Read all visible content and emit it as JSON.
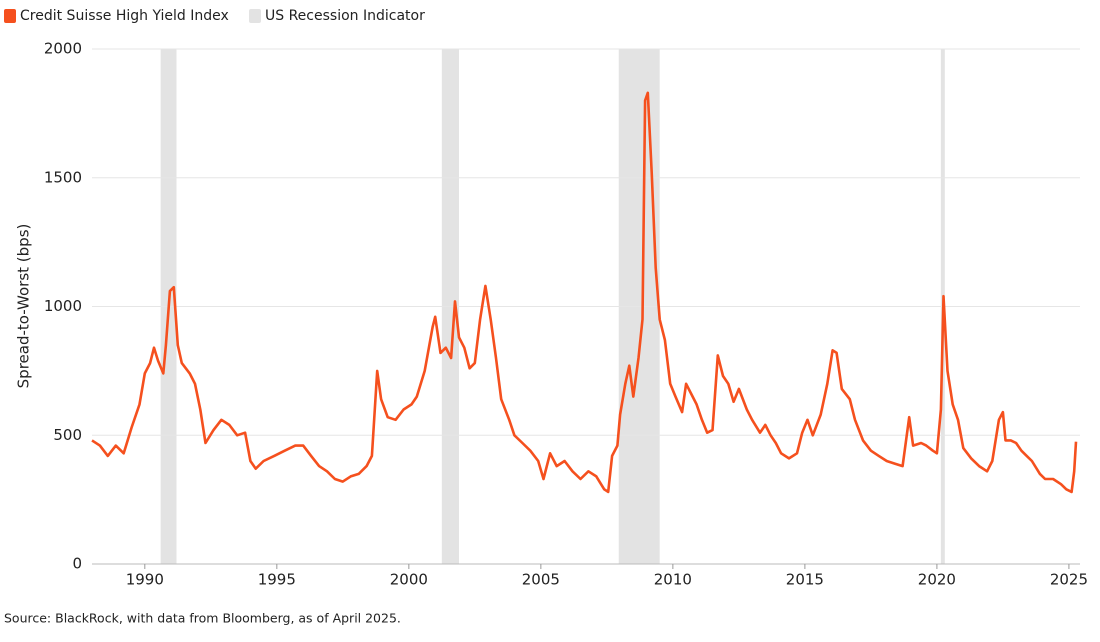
{
  "chart_data": {
    "type": "line",
    "ylabel": "Spread-to-Worst (bps)",
    "source": "Source: BlackRock, with data from Bloomberg, as of April 2025.",
    "recession_name": "US Recession Indicator",
    "recession_color": "#e3e3e3",
    "recessions": [
      [
        1990.6,
        1991.2
      ],
      [
        2001.25,
        2001.9
      ],
      [
        2007.95,
        2009.5
      ],
      [
        2020.15,
        2020.3
      ]
    ],
    "xlim": [
      1988,
      2025.42
    ],
    "xticks": [
      1990,
      1995,
      2000,
      2005,
      2010,
      2015,
      2020,
      2025
    ],
    "ylim": [
      0,
      2000
    ],
    "yticks": [
      0,
      500,
      1000,
      1500,
      2000
    ],
    "grid": true,
    "x": [
      1988.0,
      1988.3,
      1988.6,
      1988.9,
      1989.2,
      1989.5,
      1989.8,
      1990.0,
      1990.2,
      1990.35,
      1990.5,
      1990.7,
      1990.8,
      1990.95,
      1991.1,
      1991.25,
      1991.4,
      1991.7,
      1991.9,
      1992.1,
      1992.3,
      1992.6,
      1992.9,
      1993.2,
      1993.5,
      1993.8,
      1994.0,
      1994.2,
      1994.5,
      1994.9,
      1995.3,
      1995.7,
      1996.0,
      1996.3,
      1996.6,
      1996.9,
      1997.2,
      1997.5,
      1997.8,
      1998.1,
      1998.4,
      1998.6,
      1998.8,
      1998.95,
      1999.2,
      1999.5,
      1999.8,
      2000.1,
      2000.3,
      2000.6,
      2000.9,
      2001.0,
      2001.2,
      2001.4,
      2001.6,
      2001.75,
      2001.9,
      2002.1,
      2002.3,
      2002.5,
      2002.7,
      2002.9,
      2003.1,
      2003.3,
      2003.5,
      2003.8,
      2004.0,
      2004.3,
      2004.6,
      2004.9,
      2005.1,
      2005.35,
      2005.6,
      2005.9,
      2006.2,
      2006.5,
      2006.8,
      2007.1,
      2007.4,
      2007.55,
      2007.7,
      2007.9,
      2008.0,
      2008.2,
      2008.35,
      2008.5,
      2008.7,
      2008.85,
      2008.95,
      2009.05,
      2009.2,
      2009.35,
      2009.5,
      2009.7,
      2009.9,
      2010.1,
      2010.35,
      2010.5,
      2010.7,
      2010.9,
      2011.1,
      2011.3,
      2011.5,
      2011.7,
      2011.9,
      2012.1,
      2012.3,
      2012.5,
      2012.8,
      2013.0,
      2013.3,
      2013.5,
      2013.7,
      2013.9,
      2014.1,
      2014.4,
      2014.7,
      2014.9,
      2015.1,
      2015.3,
      2015.6,
      2015.85,
      2016.05,
      2016.2,
      2016.4,
      2016.7,
      2016.9,
      2017.2,
      2017.5,
      2017.8,
      2018.1,
      2018.4,
      2018.7,
      2018.95,
      2019.1,
      2019.4,
      2019.6,
      2019.85,
      2020.0,
      2020.15,
      2020.25,
      2020.4,
      2020.6,
      2020.8,
      2021.0,
      2021.3,
      2021.6,
      2021.9,
      2022.1,
      2022.35,
      2022.5,
      2022.6,
      2022.8,
      2023.0,
      2023.2,
      2023.4,
      2023.6,
      2023.9,
      2024.1,
      2024.4,
      2024.7,
      2024.9,
      2025.1,
      2025.2,
      2025.27
    ],
    "series": [
      {
        "name": "Credit Suisse High Yield Index",
        "color": "#f5501e",
        "values": [
          480,
          460,
          420,
          460,
          430,
          530,
          620,
          740,
          780,
          840,
          790,
          740,
          850,
          1060,
          1075,
          850,
          780,
          740,
          700,
          600,
          470,
          520,
          560,
          540,
          500,
          510,
          400,
          370,
          400,
          420,
          440,
          460,
          460,
          420,
          380,
          360,
          330,
          320,
          340,
          350,
          380,
          420,
          750,
          640,
          570,
          560,
          600,
          620,
          650,
          750,
          920,
          960,
          820,
          840,
          800,
          1020,
          880,
          840,
          760,
          780,
          950,
          1080,
          950,
          800,
          640,
          560,
          500,
          470,
          440,
          400,
          330,
          430,
          380,
          400,
          360,
          330,
          360,
          340,
          290,
          280,
          420,
          460,
          580,
          700,
          770,
          650,
          800,
          950,
          1800,
          1830,
          1520,
          1150,
          950,
          870,
          700,
          650,
          590,
          700,
          660,
          620,
          560,
          510,
          520,
          810,
          730,
          700,
          630,
          680,
          600,
          560,
          510,
          540,
          500,
          470,
          430,
          410,
          430,
          510,
          560,
          500,
          580,
          700,
          830,
          820,
          680,
          640,
          560,
          480,
          440,
          420,
          400,
          390,
          380,
          570,
          460,
          470,
          460,
          440,
          430,
          600,
          1040,
          750,
          620,
          560,
          450,
          410,
          380,
          360,
          400,
          560,
          590,
          480,
          480,
          470,
          440,
          420,
          400,
          350,
          330,
          330,
          310,
          290,
          280,
          360,
          475
        ]
      }
    ]
  }
}
